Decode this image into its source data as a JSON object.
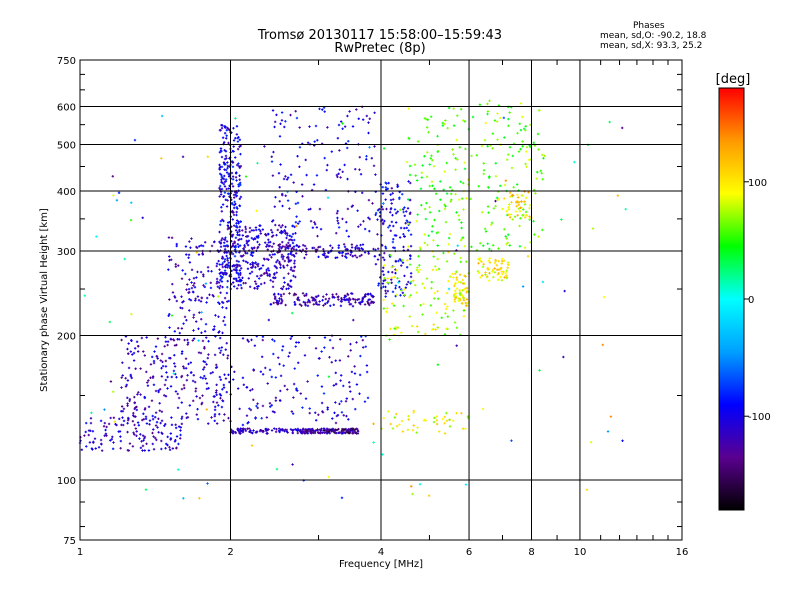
{
  "header": {
    "title_line1": "Tromsø 20130117 15:58:00–15:59:43",
    "title_line2": "RwPretec (8p)"
  },
  "phases_box": {
    "heading": "Phases",
    "o_label": "mean, sd,O:",
    "o_values": "-90.2, 18.8",
    "x_label": "mean, sd,X:",
    "x_values": "93.3, 25.2"
  },
  "chart_data": {
    "type": "scatter",
    "xlabel": "Frequency [MHz]",
    "ylabel": "Stationary phase Virtual Height [km]",
    "xscale": "log",
    "yscale": "log",
    "xlim": [
      1,
      16
    ],
    "ylim": [
      75,
      750
    ],
    "xticks": [
      1,
      2,
      4,
      6,
      8,
      10,
      16
    ],
    "xtick_labels": [
      "1",
      "2",
      "4",
      "6",
      "8",
      "10",
      "16"
    ],
    "yticks": [
      75,
      100,
      200,
      300,
      400,
      500,
      600,
      750
    ],
    "ytick_labels": [
      "75",
      "100",
      "200",
      "300",
      "400",
      "500",
      "600",
      "750"
    ],
    "grid": true,
    "colorbar": {
      "label": "[deg]",
      "range": [
        -180,
        180
      ],
      "ticks": [
        100,
        0,
        -100
      ],
      "tick_labels": [
        "100",
        "0",
        "-100"
      ],
      "colors": [
        "#000000",
        "#5a0090",
        "#0000ff",
        "#00a0ff",
        "#00ffff",
        "#00ff00",
        "#ffff00",
        "#ff9900",
        "#ff0000"
      ]
    },
    "clusters": [
      {
        "f": [
          1.0,
          1.6
        ],
        "h": [
          115,
          135
        ],
        "phase": -110,
        "n": 130
      },
      {
        "f": [
          1.2,
          2.0
        ],
        "h": [
          130,
          200
        ],
        "phase": -115,
        "n": 260
      },
      {
        "f": [
          1.5,
          2.0
        ],
        "h": [
          200,
          320
        ],
        "phase": -110,
        "n": 160
      },
      {
        "f": [
          1.9,
          2.1
        ],
        "h": [
          250,
          550
        ],
        "phase": -100,
        "n": 300
      },
      {
        "f": [
          2.0,
          2.7
        ],
        "h": [
          250,
          340
        ],
        "phase": -110,
        "n": 260
      },
      {
        "f": [
          2.0,
          3.6
        ],
        "h": [
          125,
          128
        ],
        "phase": -115,
        "n": 160
      },
      {
        "f": [
          2.0,
          3.8
        ],
        "h": [
          130,
          200
        ],
        "phase": -105,
        "n": 160
      },
      {
        "f": [
          2.4,
          3.9
        ],
        "h": [
          230,
          245
        ],
        "phase": -120,
        "n": 150
      },
      {
        "f": [
          2.4,
          3.9
        ],
        "h": [
          290,
          310
        ],
        "phase": -115,
        "n": 110
      },
      {
        "f": [
          2.4,
          3.9
        ],
        "h": [
          320,
          600
        ],
        "phase": -105,
        "n": 160
      },
      {
        "f": [
          2.8,
          3.6
        ],
        "h": [
          125,
          128
        ],
        "phase": -140,
        "n": 80
      },
      {
        "f": [
          3.9,
          4.6
        ],
        "h": [
          240,
          420
        ],
        "phase": -100,
        "n": 160
      },
      {
        "f": [
          4.0,
          6.0
        ],
        "h": [
          125,
          140
        ],
        "phase": 90,
        "n": 45
      },
      {
        "f": [
          4.0,
          6.0
        ],
        "h": [
          200,
          300
        ],
        "phase": 80,
        "n": 120
      },
      {
        "f": [
          4.5,
          6.0
        ],
        "h": [
          300,
          600
        ],
        "phase": 60,
        "n": 120
      },
      {
        "f": [
          5.6,
          6.0
        ],
        "h": [
          230,
          270
        ],
        "phase": 100,
        "n": 40
      },
      {
        "f": [
          6.2,
          7.2
        ],
        "h": [
          260,
          290
        ],
        "phase": 100,
        "n": 60
      },
      {
        "f": [
          6.0,
          8.5
        ],
        "h": [
          300,
          620
        ],
        "phase": 60,
        "n": 140
      },
      {
        "f": [
          7.0,
          8.0
        ],
        "h": [
          350,
          400
        ],
        "phase": 110,
        "n": 40
      },
      {
        "f": [
          1.0,
          12.5
        ],
        "h": [
          90,
          600
        ],
        "phase": 0,
        "n": 110
      }
    ]
  }
}
